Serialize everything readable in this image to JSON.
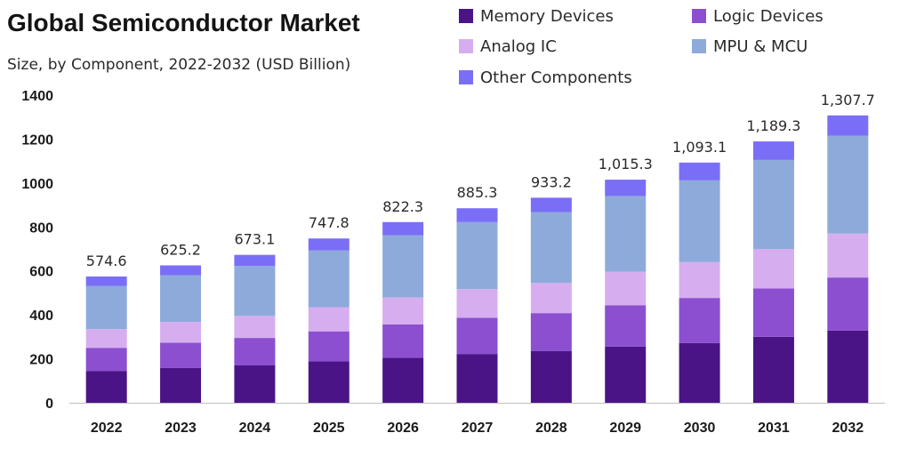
{
  "chart_data": {
    "type": "bar",
    "stacked": true,
    "title": "Global Semiconductor Market",
    "subtitle": "Size, by Component, 2022-2032 (USD Billion)",
    "categories": [
      "2022",
      "2023",
      "2024",
      "2025",
      "2026",
      "2027",
      "2028",
      "2029",
      "2030",
      "2031",
      "2032"
    ],
    "series": [
      {
        "name": "Memory Devices",
        "color": "#4a1486",
        "values": [
          145,
          158,
          170,
          188,
          205,
          222,
          236,
          256,
          272,
          300,
          328
        ]
      },
      {
        "name": "Logic Devices",
        "color": "#8b4fd0",
        "values": [
          105,
          115,
          125,
          137,
          152,
          165,
          172,
          188,
          205,
          220,
          242
        ]
      },
      {
        "name": "Analog IC",
        "color": "#d6aef0",
        "values": [
          85,
          95,
          100,
          110,
          122,
          130,
          137,
          152,
          163,
          180,
          200
        ]
      },
      {
        "name": "MPU & MCU",
        "color": "#8eaadb",
        "values": [
          197,
          212,
          228,
          258,
          283,
          305,
          323,
          345,
          372,
          405,
          445
        ]
      },
      {
        "name": "Other Components",
        "color": "#7b6ef6",
        "values": [
          42.6,
          45.2,
          50.1,
          54.8,
          60.3,
          63.3,
          65.2,
          74.3,
          81.1,
          84.3,
          92.7
        ]
      }
    ],
    "totals": [
      "574.6",
      "625.2",
      "673.1",
      "747.8",
      "822.3",
      "885.3",
      "933.2",
      "1,015.3",
      "1,093.1",
      "1,189.3",
      "1,307.7"
    ],
    "yticks": [
      "0",
      "200",
      "400",
      "600",
      "800",
      "1000",
      "1200",
      "1400"
    ],
    "ylim": [
      0,
      1400
    ],
    "grid": false,
    "legend_position": "top-right"
  }
}
